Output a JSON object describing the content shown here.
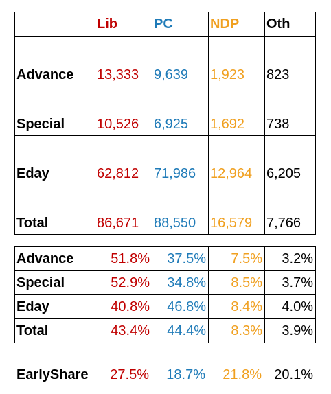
{
  "colors": {
    "lib": "#c00000",
    "pc": "#1f7bb8",
    "ndp": "#f0a020",
    "oth": "#000000"
  },
  "votes": {
    "headers": [
      "Lib",
      "PC",
      "NDP",
      "Oth"
    ],
    "rows": [
      {
        "label": "Advance",
        "lib": "13,333",
        "pc": "9,639",
        "ndp": "1,923",
        "oth": "823"
      },
      {
        "label": "Special",
        "lib": "10,526",
        "pc": "6,925",
        "ndp": "1,692",
        "oth": "738"
      },
      {
        "label": "Eday",
        "lib": "62,812",
        "pc": "71,986",
        "ndp": "12,964",
        "oth": "6,205"
      },
      {
        "label": "Total",
        "lib": "86,671",
        "pc": "88,550",
        "ndp": "16,579",
        "oth": "7,766"
      }
    ]
  },
  "shares": {
    "rows": [
      {
        "label": "Advance",
        "lib": "51.8%",
        "pc": "37.5%",
        "ndp": "7.5%",
        "oth": "3.2%"
      },
      {
        "label": "Special",
        "lib": "52.9%",
        "pc": "34.8%",
        "ndp": "8.5%",
        "oth": "3.7%"
      },
      {
        "label": "Eday",
        "lib": "40.8%",
        "pc": "46.8%",
        "ndp": "8.4%",
        "oth": "4.0%"
      },
      {
        "label": "Total",
        "lib": "43.4%",
        "pc": "44.4%",
        "ndp": "8.3%",
        "oth": "3.9%"
      }
    ]
  },
  "early_share": {
    "label": "EarlyShare",
    "lib": "27.5%",
    "pc": "18.7%",
    "ndp": "21.8%",
    "oth": "20.1%"
  }
}
